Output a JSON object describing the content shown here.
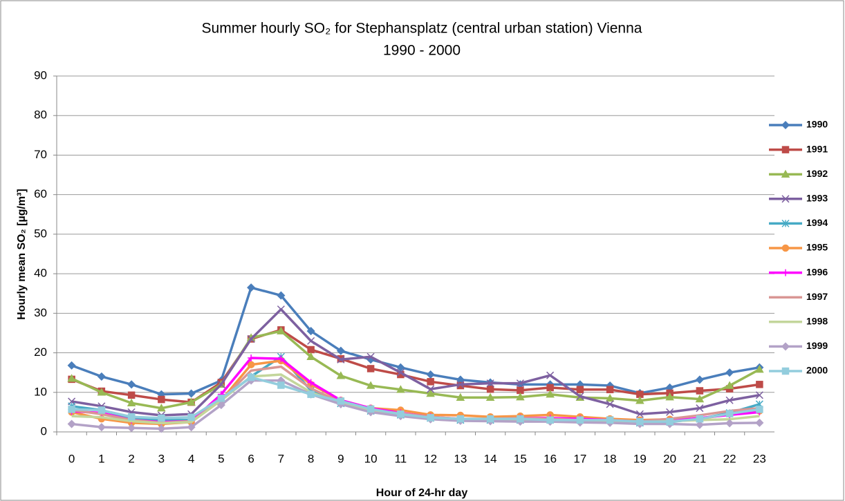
{
  "chart_data": {
    "type": "line",
    "title": "Summer hourly SO₂ for Stephansplatz  (central urban station) Vienna",
    "subtitle": "1990 - 2000",
    "x_label": "Hour of 24-hr day",
    "y_label": "Hourly mean SO₂ [µg/m³]",
    "categories": [
      "0",
      "1",
      "2",
      "3",
      "4",
      "5",
      "6",
      "7",
      "8",
      "9",
      "10",
      "11",
      "12",
      "13",
      "14",
      "15",
      "16",
      "17",
      "18",
      "19",
      "20",
      "21",
      "22",
      "23"
    ],
    "ylim": [
      0,
      90
    ],
    "yticks": [
      0,
      10,
      20,
      30,
      40,
      50,
      60,
      70,
      80,
      90
    ],
    "grid": true,
    "legend": "right",
    "series": [
      {
        "name": "1990",
        "color": "#4a7ebb",
        "marker": "diamond",
        "values": [
          16.8,
          14,
          12,
          9.5,
          9.7,
          13,
          36.5,
          34.5,
          25.5,
          20.5,
          18.3,
          16.3,
          14.5,
          13.2,
          12.5,
          12,
          12,
          12,
          11.7,
          9.8,
          11.2,
          13.2,
          15,
          16.3
        ]
      },
      {
        "name": "1991",
        "color": "#be4b48",
        "marker": "square",
        "values": [
          13.3,
          10.3,
          9.3,
          8.2,
          7.5,
          12.5,
          23.5,
          25.8,
          20.8,
          18.5,
          16,
          14.5,
          12.7,
          11.7,
          10.8,
          10.5,
          11.2,
          10.7,
          10.7,
          9.5,
          9.8,
          10.4,
          10.9,
          12
        ]
      },
      {
        "name": "1992",
        "color": "#98b954",
        "marker": "triangle",
        "values": [
          13.5,
          10,
          7.3,
          6,
          7.5,
          12,
          23.8,
          25.5,
          19,
          14.2,
          11.7,
          10.7,
          9.7,
          8.7,
          8.7,
          8.8,
          9.5,
          8.7,
          8.5,
          7.9,
          8.8,
          8.3,
          11.7,
          15.8
        ]
      },
      {
        "name": "1993",
        "color": "#7d60a0",
        "marker": "x",
        "values": [
          7.7,
          6.5,
          5,
          4.2,
          4.5,
          12,
          23.5,
          31,
          23,
          18.3,
          19,
          15,
          10.8,
          12,
          12.3,
          12.3,
          14.3,
          9,
          7,
          4.5,
          5,
          6,
          8,
          9.3
        ]
      },
      {
        "name": "1994",
        "color": "#46aac5",
        "marker": "star",
        "values": [
          6.5,
          5.5,
          3.5,
          3,
          3,
          8,
          14,
          19,
          10.5,
          7.2,
          5.3,
          4.3,
          3.5,
          3,
          3,
          3,
          3,
          3,
          3,
          2.3,
          2.5,
          3.3,
          4.8,
          7
        ]
      },
      {
        "name": "1995",
        "color": "#f79646",
        "marker": "circle",
        "values": [
          5,
          3.3,
          2.3,
          2,
          2.5,
          8,
          17,
          18,
          12,
          8,
          6,
          5.5,
          4.3,
          4.2,
          3.8,
          4,
          4.3,
          3.8,
          3.3,
          3,
          3.2,
          3.3,
          4.5,
          5.3
        ]
      },
      {
        "name": "1996",
        "color": "#ff00ff",
        "marker": "plus",
        "values": [
          5.2,
          4.8,
          3,
          2.5,
          2.7,
          9.5,
          18.7,
          18.5,
          12.5,
          8,
          6,
          4.8,
          3.8,
          3.3,
          3.2,
          3.5,
          3.5,
          3.3,
          3,
          2.6,
          2.8,
          3.5,
          4.3,
          5
        ]
      },
      {
        "name": "1997",
        "color": "#d99694",
        "marker": "none",
        "values": [
          5.5,
          4.5,
          3,
          2.3,
          2.7,
          8,
          15.5,
          16.5,
          11,
          7.5,
          5.5,
          4.7,
          3.8,
          3.3,
          3.3,
          3.5,
          3.3,
          3,
          2.8,
          2.7,
          3.3,
          4.2,
          5.3,
          6
        ]
      },
      {
        "name": "1998",
        "color": "#c3d69b",
        "marker": "none",
        "values": [
          4,
          3.7,
          2.7,
          2.2,
          2.5,
          8,
          14,
          14.5,
          10,
          7.3,
          5.5,
          4.5,
          3.5,
          3,
          3,
          3,
          3,
          3,
          2.8,
          2.5,
          2.7,
          3,
          3.2,
          4
        ]
      },
      {
        "name": "1999",
        "color": "#b3a2c7",
        "marker": "diamond",
        "values": [
          2,
          1.2,
          1,
          0.8,
          1.2,
          6.8,
          13,
          13,
          9.5,
          7,
          5,
          4,
          3.2,
          2.8,
          2.7,
          2.6,
          2.6,
          2.4,
          2.3,
          2,
          2,
          1.8,
          2.2,
          2.3
        ]
      },
      {
        "name": "2000",
        "color": "#93cddd",
        "marker": "square",
        "values": [
          5.7,
          5.5,
          3.8,
          3.5,
          3.7,
          8.5,
          13.8,
          11.8,
          9.5,
          7.8,
          5.8,
          4.5,
          3.6,
          3.3,
          3.3,
          3.3,
          3,
          3,
          3,
          2.6,
          2.6,
          3.3,
          4.6,
          5.7
        ]
      }
    ]
  }
}
